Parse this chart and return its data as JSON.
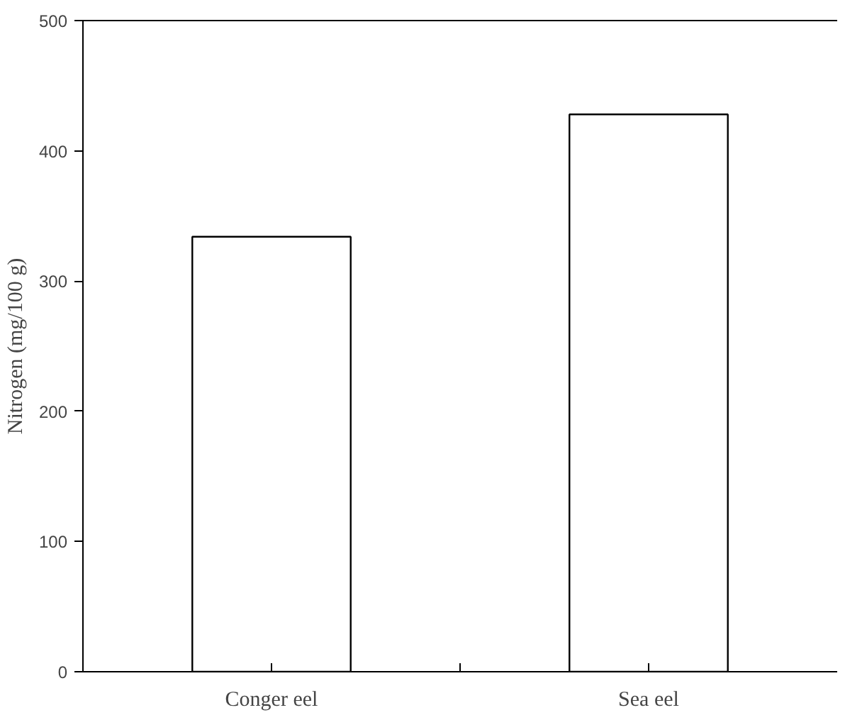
{
  "chart_data": {
    "type": "bar",
    "ylabel": "Nitrogen (mg/100 g)",
    "categories": [
      "Conger eel",
      "Sea eel"
    ],
    "values": [
      334,
      428
    ],
    "color": "#ffffff",
    "ylim": [
      0,
      500
    ],
    "yticks": [
      0,
      100,
      200,
      300,
      400,
      500
    ],
    "grid": false
  }
}
